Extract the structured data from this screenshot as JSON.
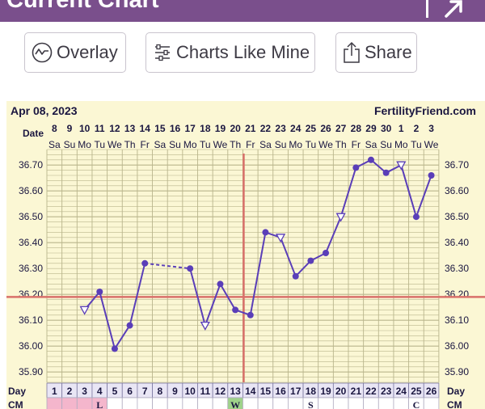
{
  "header": {
    "title": "Current Chart"
  },
  "toolbar": {
    "overlay_label": "Overlay",
    "charts_like_mine_label": "Charts Like Mine",
    "share_label": "Share"
  },
  "chart_header": {
    "start_date": "Apr 08, 2023",
    "site": "FertilityFriend.com",
    "date_label": "Date"
  },
  "chart_data": {
    "type": "line",
    "dates": [
      "8",
      "9",
      "10",
      "11",
      "12",
      "13",
      "14",
      "15",
      "16",
      "17",
      "18",
      "19",
      "20",
      "21",
      "22",
      "23",
      "24",
      "25",
      "26",
      "27",
      "28",
      "29",
      "30",
      "1",
      "2",
      "3"
    ],
    "weekdays": [
      "Sa",
      "Su",
      "Mo",
      "Tu",
      "We",
      "Th",
      "Fr",
      "Sa",
      "Su",
      "Mo",
      "Tu",
      "We",
      "Th",
      "Fr",
      "Sa",
      "Su",
      "Mo",
      "Tu",
      "We",
      "Th",
      "Fr",
      "Sa",
      "Su",
      "Mo",
      "Tu",
      "We"
    ],
    "cycle_days": [
      1,
      2,
      3,
      4,
      5,
      6,
      7,
      8,
      9,
      10,
      11,
      12,
      13,
      14,
      15,
      16,
      17,
      18,
      19,
      20,
      21,
      22,
      23,
      24,
      25,
      26
    ],
    "temperatures": [
      null,
      null,
      36.14,
      36.21,
      35.99,
      36.08,
      36.32,
      null,
      null,
      36.3,
      36.08,
      36.24,
      36.14,
      36.12,
      36.44,
      36.42,
      36.27,
      36.33,
      36.36,
      36.5,
      36.69,
      36.72,
      36.67,
      36.7,
      36.5,
      36.66
    ],
    "hollow_point_days": [
      3,
      11,
      16,
      20,
      24
    ],
    "y_ticks": [
      "36.70",
      "36.60",
      "36.50",
      "36.40",
      "36.30",
      "36.20",
      "36.10",
      "36.00",
      "35.90"
    ],
    "ylim": [
      35.86,
      36.76
    ],
    "coverline": 36.19,
    "ovulation_day": 14,
    "day_label": "Day",
    "cm_label": "CM",
    "cm_marks": [
      {
        "day": 1,
        "text": ""
      },
      {
        "day": 2,
        "text": ""
      },
      {
        "day": 3,
        "text": ""
      },
      {
        "day": 4,
        "text": "L"
      },
      {
        "day": 13,
        "text": "W"
      },
      {
        "day": 18,
        "text": "S"
      },
      {
        "day": 25,
        "text": "C"
      }
    ],
    "colors": {
      "line": "#5a3eb8",
      "coverline": "#d9706a",
      "ovulation": "#d9706a",
      "grid": "#b9b58c",
      "background": "#fbf7d4",
      "day_cell": "#e9e6f5",
      "cm_period": "#f4b6cc",
      "cm_fertile": "#9fd28a"
    }
  }
}
